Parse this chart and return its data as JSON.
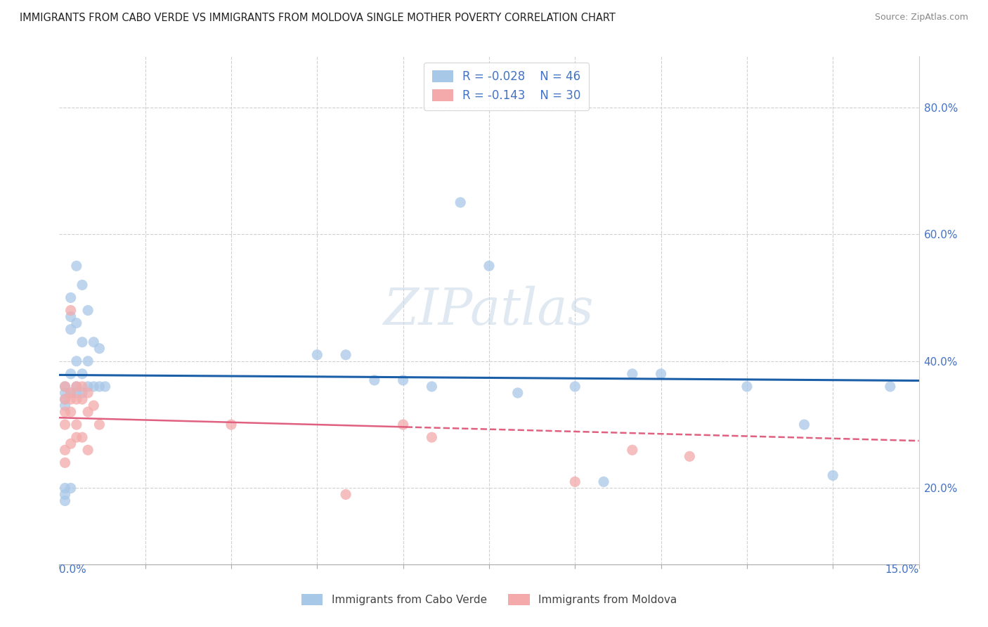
{
  "title": "IMMIGRANTS FROM CABO VERDE VS IMMIGRANTS FROM MOLDOVA SINGLE MOTHER POVERTY CORRELATION CHART",
  "source": "Source: ZipAtlas.com",
  "ylabel": "Single Mother Poverty",
  "xlim": [
    0.0,
    0.15
  ],
  "ylim": [
    0.08,
    0.88
  ],
  "cabo_verde_color": "#A8C8E8",
  "cabo_verde_line_color": "#1A5FA8",
  "moldova_color": "#F4AAAA",
  "moldova_line_color": "#E06080",
  "cabo_verde_R": -0.028,
  "cabo_verde_N": 46,
  "moldova_R": -0.143,
  "moldova_N": 30,
  "cabo_verde_x": [
    0.001,
    0.001,
    0.001,
    0.001,
    0.001,
    0.001,
    0.001,
    0.002,
    0.002,
    0.002,
    0.002,
    0.002,
    0.002,
    0.003,
    0.003,
    0.003,
    0.003,
    0.003,
    0.004,
    0.004,
    0.004,
    0.004,
    0.005,
    0.005,
    0.005,
    0.006,
    0.006,
    0.007,
    0.007,
    0.008,
    0.045,
    0.05,
    0.055,
    0.07,
    0.075,
    0.09,
    0.1,
    0.105,
    0.12,
    0.13,
    0.135,
    0.145,
    0.06,
    0.065,
    0.08,
    0.095
  ],
  "cabo_verde_y": [
    0.36,
    0.35,
    0.34,
    0.33,
    0.2,
    0.19,
    0.18,
    0.5,
    0.47,
    0.45,
    0.38,
    0.35,
    0.2,
    0.55,
    0.46,
    0.4,
    0.36,
    0.35,
    0.52,
    0.43,
    0.38,
    0.35,
    0.48,
    0.4,
    0.36,
    0.43,
    0.36,
    0.42,
    0.36,
    0.36,
    0.41,
    0.41,
    0.37,
    0.65,
    0.55,
    0.36,
    0.38,
    0.38,
    0.36,
    0.3,
    0.22,
    0.36,
    0.37,
    0.36,
    0.35,
    0.21
  ],
  "moldova_x": [
    0.001,
    0.001,
    0.001,
    0.001,
    0.001,
    0.001,
    0.002,
    0.002,
    0.002,
    0.002,
    0.002,
    0.003,
    0.003,
    0.003,
    0.003,
    0.004,
    0.004,
    0.004,
    0.005,
    0.005,
    0.005,
    0.006,
    0.007,
    0.03,
    0.05,
    0.06,
    0.065,
    0.09,
    0.1,
    0.11
  ],
  "moldova_y": [
    0.36,
    0.34,
    0.32,
    0.3,
    0.26,
    0.24,
    0.48,
    0.35,
    0.34,
    0.32,
    0.27,
    0.36,
    0.34,
    0.3,
    0.28,
    0.36,
    0.34,
    0.28,
    0.35,
    0.32,
    0.26,
    0.33,
    0.3,
    0.3,
    0.19,
    0.3,
    0.28,
    0.21,
    0.26,
    0.25
  ]
}
